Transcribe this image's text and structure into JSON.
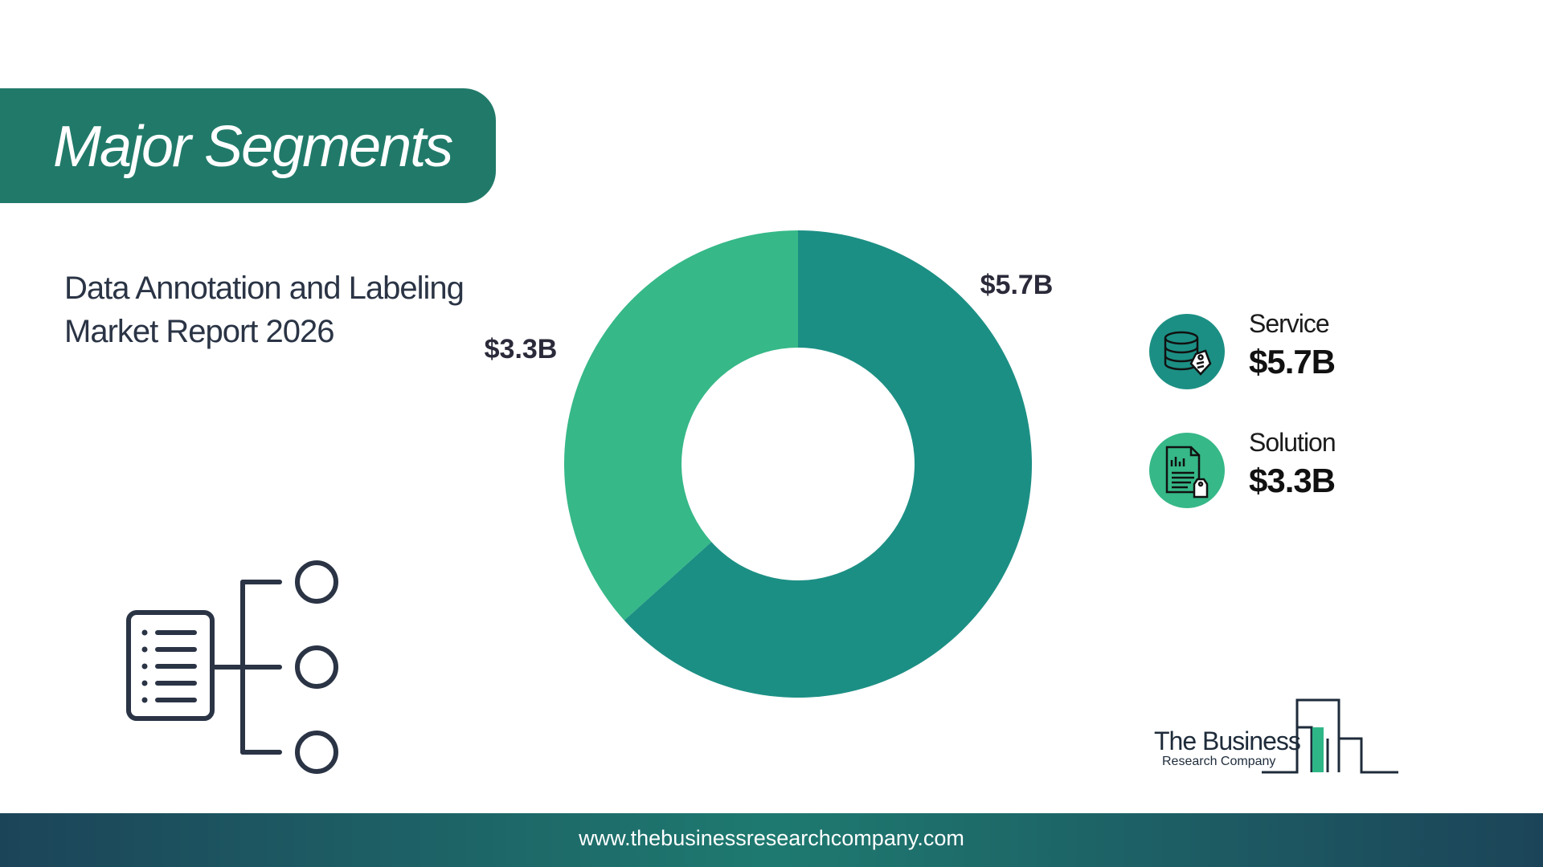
{
  "header": {
    "title": "Major Segments",
    "subtitle_line1": "Data Annotation and Labeling",
    "subtitle_line2": "Market Report 2026"
  },
  "chart_data": {
    "type": "pie",
    "donut": true,
    "categories": [
      "Service",
      "Solution"
    ],
    "values": [
      5.7,
      3.3
    ],
    "data_labels": [
      "$5.7B",
      "$3.3B"
    ],
    "colors": [
      "#1c8f84",
      "#36b888"
    ],
    "legend_placement": "right"
  },
  "legend": {
    "items": [
      {
        "label": "Service",
        "value": "$5.7B",
        "icon": "database-tag-icon",
        "color": "#1c8f84"
      },
      {
        "label": "Solution",
        "value": "$3.3B",
        "icon": "document-tag-icon",
        "color": "#36b888"
      }
    ]
  },
  "logo": {
    "line1": "The Business",
    "line2": "Research Company"
  },
  "footer": {
    "url": "www.thebusinessresearchcompany.com"
  },
  "decorations": {
    "left_icon": "list-tree-icon",
    "brand_color": "#217a69",
    "text_color": "#2a3445"
  }
}
